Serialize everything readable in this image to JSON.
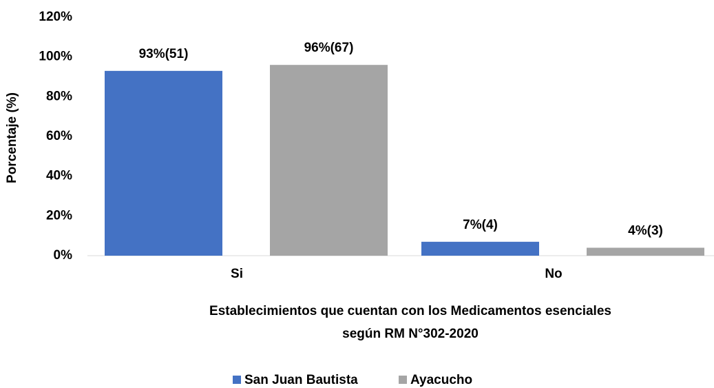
{
  "chart_data": {
    "type": "bar",
    "y_label": "Porcentaje (%)",
    "x_label": [
      "Establecimientos que cuentan con los Medicamentos esenciales",
      "según RM N°302-2020"
    ],
    "categories": [
      "Si",
      "No"
    ],
    "series": [
      {
        "name": "San Juan Bautista",
        "color": "#4472c4",
        "values": [
          93,
          7
        ],
        "value_labels": [
          "93%(51)",
          "7%(4)"
        ]
      },
      {
        "name": "Ayacucho",
        "color": "#a5a5a5",
        "values": [
          96,
          4
        ],
        "value_labels": [
          "96%(67)",
          "4%(3)"
        ]
      }
    ],
    "ylim": [
      0,
      120
    ],
    "yticks": [
      {
        "value": 0,
        "label": "0%"
      },
      {
        "value": 20,
        "label": "20%"
      },
      {
        "value": 40,
        "label": "40%"
      },
      {
        "value": 60,
        "label": "60%"
      },
      {
        "value": 80,
        "label": "80%"
      },
      {
        "value": 100,
        "label": "100%"
      },
      {
        "value": 120,
        "label": "120%"
      }
    ],
    "grid": false,
    "legend": "bottom"
  }
}
